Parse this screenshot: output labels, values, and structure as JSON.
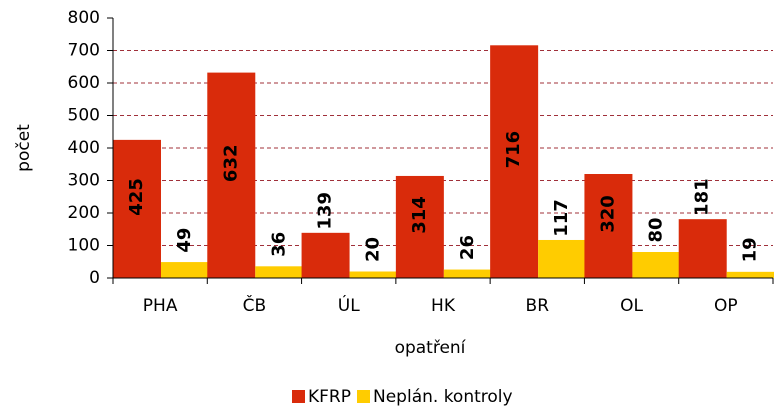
{
  "chart_data": {
    "type": "bar",
    "categories": [
      "PHA",
      "ČB",
      "ÚL",
      "HK",
      "BR",
      "OL",
      "OP"
    ],
    "series": [
      {
        "name": "KFRP",
        "color": "#d92b0b",
        "values": [
          425,
          632,
          139,
          314,
          716,
          320,
          181
        ]
      },
      {
        "name": "Neplán. kontroly",
        "color": "#ffcc00",
        "values": [
          49,
          36,
          20,
          26,
          117,
          80,
          19
        ]
      }
    ],
    "xlabel": "opatření",
    "ylabel": "počet",
    "ylim": [
      0,
      800
    ],
    "yticks": [
      0,
      100,
      200,
      300,
      400,
      500,
      600,
      700,
      800
    ],
    "grid": true,
    "legend": "bottom"
  }
}
